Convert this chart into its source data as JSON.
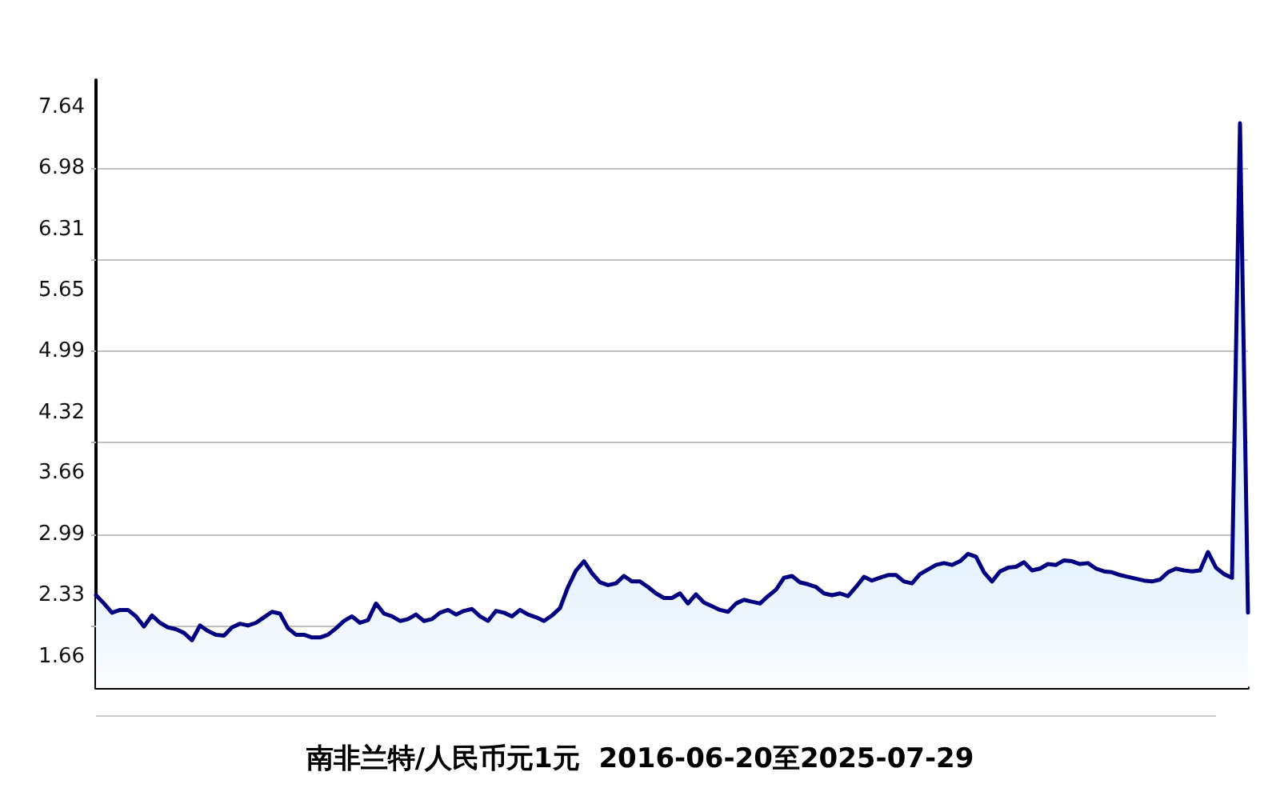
{
  "chart_data": {
    "type": "area",
    "title": "南非兰特/人民币元1元  2016-06-20至2025-07-29",
    "categories": [
      null,
      null,
      null,
      null,
      null,
      null,
      null,
      null,
      null,
      null,
      null,
      null,
      null,
      null,
      null,
      null,
      null,
      null,
      null,
      null,
      null,
      null,
      null,
      null,
      null,
      null,
      null,
      null,
      null,
      null,
      null,
      null,
      null,
      null,
      null,
      null,
      null,
      null,
      null,
      null,
      null,
      null,
      null,
      null,
      null,
      null,
      null,
      null,
      null,
      null,
      null,
      null,
      null,
      null,
      null,
      null,
      null,
      null,
      null,
      null,
      null,
      null,
      null,
      null,
      null,
      null,
      null,
      null,
      null,
      null,
      null,
      null,
      null,
      null,
      null,
      null,
      null,
      null,
      null,
      null,
      null,
      null,
      null,
      null,
      null,
      null,
      null,
      null,
      null,
      null,
      null,
      null,
      null,
      null,
      null,
      null,
      null,
      null,
      null,
      null,
      null,
      null,
      null,
      null,
      null,
      null,
      null,
      null,
      null,
      null,
      null,
      null,
      null,
      null,
      null,
      null,
      null,
      null,
      null,
      null,
      null,
      null,
      null,
      null,
      null,
      null,
      null,
      null,
      null,
      null,
      null,
      null,
      null,
      null,
      null,
      null,
      null,
      null,
      null,
      null,
      null,
      null,
      null,
      null,
      null
    ],
    "series": [
      {
        "color": "#000080",
        "values": [
          2.33,
          2.24,
          2.14,
          2.17,
          2.17,
          2.1,
          1.99,
          2.11,
          2.03,
          1.98,
          1.96,
          1.92,
          1.84,
          2.0,
          1.94,
          1.9,
          1.89,
          1.98,
          2.02,
          2.0,
          2.03,
          2.09,
          2.15,
          2.13,
          1.97,
          1.9,
          1.9,
          1.87,
          1.87,
          1.9,
          1.97,
          2.05,
          2.1,
          2.03,
          2.06,
          2.24,
          2.13,
          2.1,
          2.05,
          2.07,
          2.12,
          2.05,
          2.07,
          2.14,
          2.17,
          2.12,
          2.16,
          2.18,
          2.1,
          2.05,
          2.16,
          2.14,
          2.1,
          2.17,
          2.12,
          2.09,
          2.05,
          2.11,
          2.19,
          2.42,
          2.6,
          2.7,
          2.57,
          2.47,
          2.44,
          2.46,
          2.54,
          2.48,
          2.48,
          2.42,
          2.35,
          2.3,
          2.3,
          2.35,
          2.24,
          2.34,
          2.25,
          2.21,
          2.17,
          2.15,
          2.24,
          2.28,
          2.26,
          2.24,
          2.32,
          2.39,
          2.52,
          2.54,
          2.47,
          2.45,
          2.42,
          2.35,
          2.33,
          2.35,
          2.32,
          2.42,
          2.53,
          2.49,
          2.52,
          2.55,
          2.55,
          2.48,
          2.46,
          2.56,
          2.61,
          2.66,
          2.68,
          2.66,
          2.7,
          2.78,
          2.75,
          2.58,
          2.48,
          2.59,
          2.63,
          2.64,
          2.69,
          2.6,
          2.62,
          2.67,
          2.66,
          2.71,
          2.7,
          2.67,
          2.68,
          2.62,
          2.59,
          2.58,
          2.55,
          2.53,
          2.51,
          2.49,
          2.48,
          2.5,
          2.58,
          2.62,
          2.6,
          2.59,
          2.6,
          2.8,
          2.63,
          2.56,
          2.52,
          7.47,
          2.14
        ]
      }
    ],
    "ylim": [
      1.32,
      7.94
    ],
    "yticks": [
      1.66,
      2.33,
      2.99,
      3.66,
      4.32,
      4.99,
      5.65,
      6.31,
      6.98,
      7.64,
      {
        "value": 1.99,
        "label": null
      },
      {
        "value": 2.99,
        "label": null
      },
      {
        "value": 3.99,
        "label": null
      },
      {
        "value": 4.99,
        "label": null
      },
      {
        "value": 5.98,
        "label": null
      },
      {
        "value": 6.98,
        "label": null
      }
    ],
    "grid": "y",
    "tick_labels": "y",
    "line_style": "solid"
  }
}
